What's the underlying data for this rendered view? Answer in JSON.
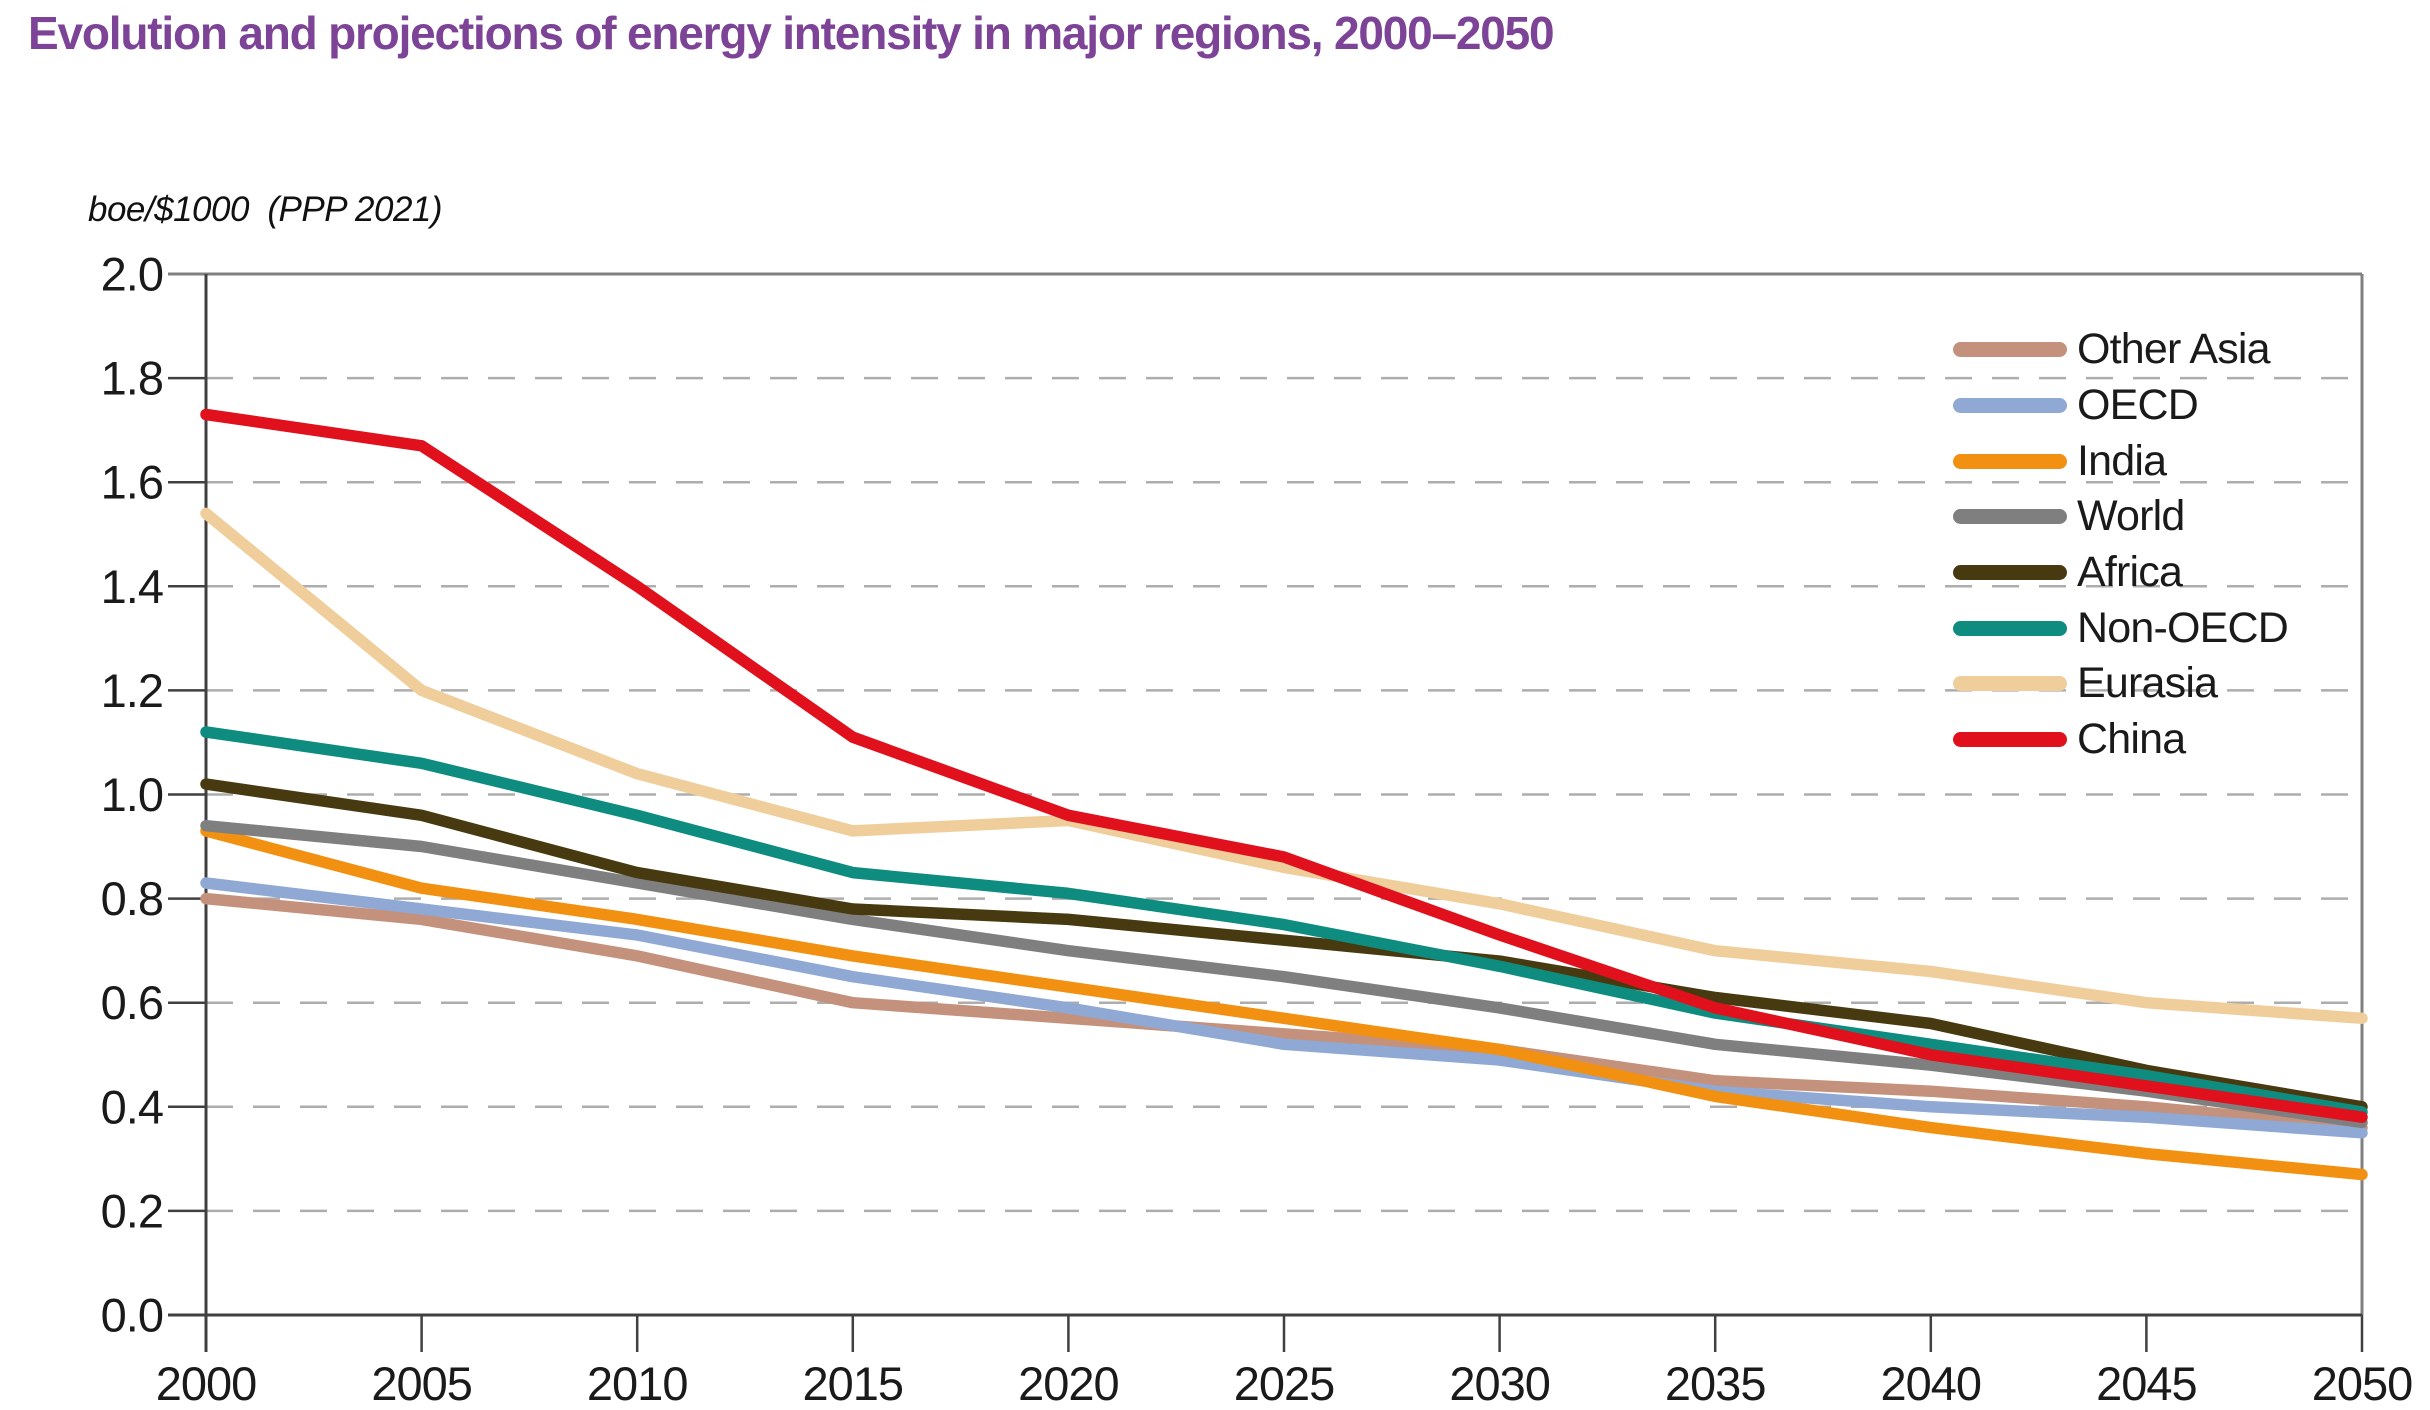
{
  "header": {
    "title": "Evolution and projections of energy intensity in major regions, 2000–2050",
    "title_color": "#7c4397"
  },
  "chart_data": {
    "type": "line",
    "title": "Evolution and projections of energy intensity in major regions, 2000–2050",
    "unit_label": "boe/$1000  (PPP 2021)",
    "xlabel": "",
    "ylabel": "boe/$1000 (PPP 2021)",
    "x": [
      2000,
      2005,
      2010,
      2015,
      2020,
      2025,
      2030,
      2035,
      2040,
      2045,
      2050
    ],
    "x_tick_labels": [
      "2000",
      "2005",
      "2010",
      "2015",
      "2020",
      "2025",
      "2030",
      "2035",
      "2040",
      "2045",
      "2050"
    ],
    "ylim": [
      0.0,
      2.0
    ],
    "y_tick_step": 0.2,
    "y_tick_labels": [
      "0.0",
      "0.2",
      "0.4",
      "0.6",
      "0.8",
      "1.0",
      "1.2",
      "1.4",
      "1.6",
      "1.8",
      "2.0"
    ],
    "grid": "horizontal dashed gray lines at each 0.2",
    "legend_position": "top-right inside plot",
    "series": [
      {
        "name": "Other Asia",
        "color": "#c4917c",
        "values": [
          0.8,
          0.76,
          0.69,
          0.6,
          0.57,
          0.54,
          0.51,
          0.45,
          0.43,
          0.4,
          0.36
        ]
      },
      {
        "name": "OECD",
        "color": "#8fa8d4",
        "values": [
          0.83,
          0.78,
          0.73,
          0.65,
          0.59,
          0.52,
          0.49,
          0.43,
          0.4,
          0.38,
          0.35
        ]
      },
      {
        "name": "India",
        "color": "#f29111",
        "values": [
          0.93,
          0.82,
          0.76,
          0.69,
          0.63,
          0.57,
          0.51,
          0.42,
          0.36,
          0.31,
          0.27
        ]
      },
      {
        "name": "World",
        "color": "#7f7f7f",
        "values": [
          0.94,
          0.9,
          0.83,
          0.76,
          0.7,
          0.65,
          0.59,
          0.52,
          0.48,
          0.43,
          0.37
        ]
      },
      {
        "name": "Africa",
        "color": "#483a10",
        "values": [
          1.02,
          0.96,
          0.85,
          0.78,
          0.76,
          0.72,
          0.68,
          0.61,
          0.56,
          0.47,
          0.4
        ]
      },
      {
        "name": "Non-OECD",
        "color": "#0e8c7f",
        "values": [
          1.12,
          1.06,
          0.96,
          0.85,
          0.81,
          0.75,
          0.67,
          0.58,
          0.52,
          0.46,
          0.39
        ]
      },
      {
        "name": "Eurasia",
        "color": "#f0ce9b",
        "values": [
          1.54,
          1.2,
          1.04,
          0.93,
          0.95,
          0.86,
          0.79,
          0.7,
          0.66,
          0.6,
          0.57
        ]
      },
      {
        "name": "China",
        "color": "#e0101c",
        "values": [
          1.73,
          1.67,
          1.4,
          1.11,
          0.96,
          0.88,
          0.73,
          0.59,
          0.5,
          0.44,
          0.38
        ]
      }
    ],
    "style": {
      "line_width": 11.5,
      "grid_color": "#adadad",
      "axis_color": "#404040",
      "frame_color": "#808080",
      "tick_label_color": "#1a1a1a"
    }
  }
}
